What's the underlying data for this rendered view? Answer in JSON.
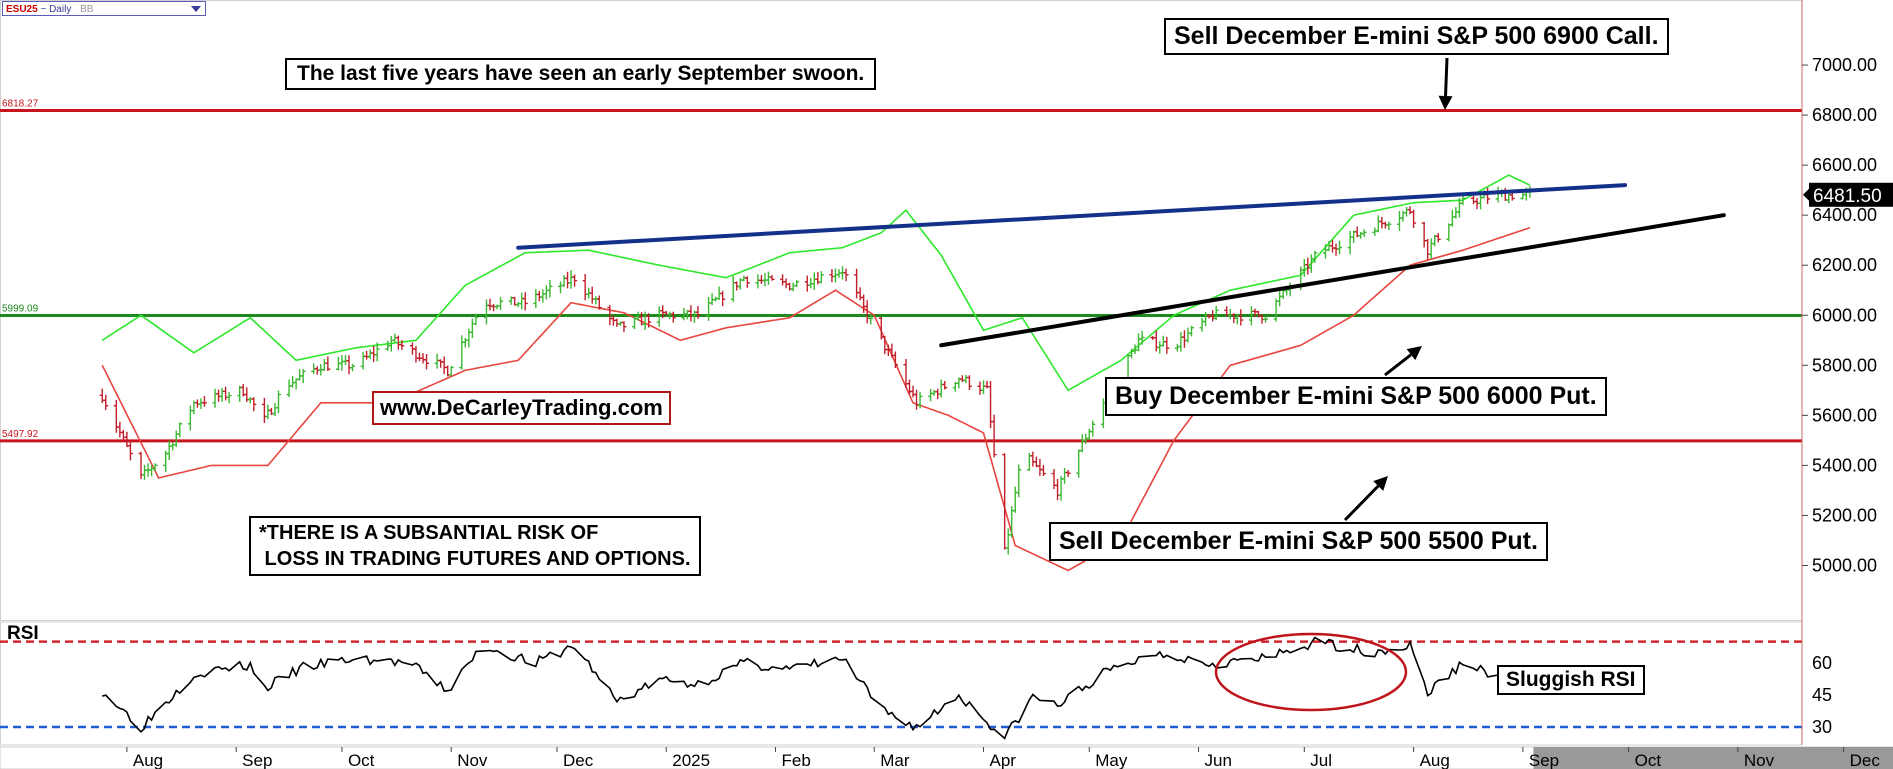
{
  "header": {
    "symbol": "ESU25",
    "interval": "~ Daily",
    "source": "BB"
  },
  "colors": {
    "price_up": "#3cb731",
    "price_down": "#c21e2a",
    "band_upper": "#2ee82a",
    "band_lower": "#e8463f",
    "resistance_trend": "#13308a",
    "support_trend": "#000000",
    "level_red": "#c8141c",
    "level_green": "#1e8a1e",
    "rsi_line": "#000000",
    "rsi_over": "#d2262e",
    "rsi_under": "#1f5ed2"
  },
  "annotations": {
    "swoon": "The last five years have seen an early September swoon.",
    "sell_call": "Sell December E-mini S&P 500 6900 Call.",
    "buy_put": "Buy December E-mini S&P 500 6000 Put.",
    "sell_put": "Sell December E-mini S&P 500 5500 Put.",
    "website": "www.DeCarleyTrading.com",
    "risk_line1": "*THERE IS A SUBSANTIAL RISK OF",
    "risk_line2": " LOSS IN TRADING FUTURES AND OPTIONS.",
    "rsi_title": "RSI",
    "sluggish": "Sluggish RSI"
  },
  "chart_data": [
    {
      "type": "ohlc",
      "x_ticks": [
        "Aug",
        "Sep",
        "Oct",
        "Nov",
        "Dec",
        "2025",
        "Feb",
        "Mar",
        "Apr",
        "May",
        "Jun",
        "Jul",
        "Aug",
        "Sep",
        "Oct",
        "Nov",
        "Dec"
      ],
      "y_ticks": [
        "5000.00",
        "5200.00",
        "5400.00",
        "5600.00",
        "5800.00",
        "6000.00",
        "6200.00",
        "6400.00",
        "6600.00",
        "6800.00",
        "7000.00"
      ],
      "ylim": [
        4870,
        7200
      ],
      "last_price": "6481.50",
      "levels": [
        {
          "label": "6818.27",
          "value": 6818.27,
          "color": "#c8141c"
        },
        {
          "label": "5999.09",
          "value": 5999.09,
          "color": "#1e8a1e"
        },
        {
          "label": "5497.92",
          "value": 5497.92,
          "color": "#c8141c"
        }
      ],
      "trendlines": [
        {
          "name": "resistance",
          "from": [
            "2024-11-20",
            6270
          ],
          "to": [
            "2025-09-30",
            6520
          ]
        },
        {
          "name": "support",
          "from": [
            "2025-03-20",
            5880
          ],
          "to": [
            "2025-10-28",
            6400
          ]
        }
      ],
      "price_anchors": [
        [
          "2024-07-25",
          5680
        ],
        [
          "2024-08-05",
          5350
        ],
        [
          "2024-08-12",
          5450
        ],
        [
          "2024-08-20",
          5650
        ],
        [
          "2024-09-03",
          5700
        ],
        [
          "2024-09-09",
          5580
        ],
        [
          "2024-09-15",
          5720
        ],
        [
          "2024-09-25",
          5800
        ],
        [
          "2024-10-05",
          5800
        ],
        [
          "2024-10-15",
          5900
        ],
        [
          "2024-10-31",
          5780
        ],
        [
          "2024-11-10",
          6050
        ],
        [
          "2024-11-22",
          6050
        ],
        [
          "2024-12-06",
          6150
        ],
        [
          "2024-12-18",
          5950
        ],
        [
          "2024-12-30",
          6000
        ],
        [
          "2025-01-10",
          6000
        ],
        [
          "2025-01-23",
          6150
        ],
        [
          "2025-02-05",
          6120
        ],
        [
          "2025-02-20",
          6180
        ],
        [
          "2025-03-01",
          5950
        ],
        [
          "2025-03-13",
          5650
        ],
        [
          "2025-03-25",
          5750
        ],
        [
          "2025-04-02",
          5700
        ],
        [
          "2025-04-07",
          5050
        ],
        [
          "2025-04-12",
          5450
        ],
        [
          "2025-04-22",
          5300
        ],
        [
          "2025-05-05",
          5650
        ],
        [
          "2025-05-15",
          5900
        ],
        [
          "2025-05-25",
          5880
        ],
        [
          "2025-06-05",
          6000
        ],
        [
          "2025-06-20",
          6000
        ],
        [
          "2025-07-05",
          6250
        ],
        [
          "2025-07-20",
          6350
        ],
        [
          "2025-07-31",
          6420
        ],
        [
          "2025-08-05",
          6260
        ],
        [
          "2025-08-15",
          6450
        ],
        [
          "2025-08-25",
          6480
        ],
        [
          "2025-09-03",
          6481.5
        ]
      ],
      "bollinger_upper": [
        [
          "2024-07-25",
          5900
        ],
        [
          "2024-08-05",
          6000
        ],
        [
          "2024-08-20",
          5850
        ],
        [
          "2024-09-05",
          5990
        ],
        [
          "2024-09-18",
          5820
        ],
        [
          "2024-10-05",
          5870
        ],
        [
          "2024-10-22",
          5900
        ],
        [
          "2024-11-05",
          6120
        ],
        [
          "2024-11-22",
          6250
        ],
        [
          "2024-12-10",
          6260
        ],
        [
          "2024-12-30",
          6200
        ],
        [
          "2025-01-18",
          6150
        ],
        [
          "2025-02-05",
          6250
        ],
        [
          "2025-02-20",
          6270
        ],
        [
          "2025-03-03",
          6330
        ],
        [
          "2025-03-10",
          6420
        ],
        [
          "2025-03-20",
          6240
        ],
        [
          "2025-04-01",
          5940
        ],
        [
          "2025-04-12",
          5990
        ],
        [
          "2025-04-25",
          5700
        ],
        [
          "2025-05-10",
          5820
        ],
        [
          "2025-05-25",
          6000
        ],
        [
          "2025-06-10",
          6100
        ],
        [
          "2025-06-30",
          6160
        ],
        [
          "2025-07-15",
          6400
        ],
        [
          "2025-08-01",
          6450
        ],
        [
          "2025-08-15",
          6460
        ],
        [
          "2025-08-28",
          6560
        ],
        [
          "2025-09-03",
          6520
        ]
      ],
      "bollinger_lower": [
        [
          "2024-07-25",
          5800
        ],
        [
          "2024-08-10",
          5350
        ],
        [
          "2024-08-25",
          5400
        ],
        [
          "2024-09-10",
          5400
        ],
        [
          "2024-09-25",
          5650
        ],
        [
          "2024-10-15",
          5650
        ],
        [
          "2024-11-05",
          5780
        ],
        [
          "2024-11-20",
          5820
        ],
        [
          "2024-12-05",
          6050
        ],
        [
          "2024-12-20",
          6010
        ],
        [
          "2025-01-05",
          5900
        ],
        [
          "2025-01-18",
          5950
        ],
        [
          "2025-02-05",
          5990
        ],
        [
          "2025-02-18",
          6100
        ],
        [
          "2025-03-01",
          6000
        ],
        [
          "2025-03-12",
          5650
        ],
        [
          "2025-03-22",
          5600
        ],
        [
          "2025-04-01",
          5530
        ],
        [
          "2025-04-10",
          5080
        ],
        [
          "2025-04-25",
          4980
        ],
        [
          "2025-05-10",
          5100
        ],
        [
          "2025-05-25",
          5500
        ],
        [
          "2025-06-10",
          5800
        ],
        [
          "2025-06-30",
          5880
        ],
        [
          "2025-07-15",
          6000
        ],
        [
          "2025-07-31",
          6200
        ],
        [
          "2025-08-15",
          6260
        ],
        [
          "2025-09-03",
          6350
        ]
      ]
    },
    {
      "type": "line",
      "title": "RSI",
      "y_ticks": [
        "30",
        "45",
        "60"
      ],
      "ylim": [
        20,
        80
      ],
      "overbought": 70,
      "oversold": 30,
      "series": [
        [
          "2024-07-25",
          47
        ],
        [
          "2024-08-05",
          30
        ],
        [
          "2024-08-20",
          55
        ],
        [
          "2024-09-05",
          59
        ],
        [
          "2024-09-09",
          48
        ],
        [
          "2024-09-20",
          58
        ],
        [
          "2024-10-05",
          62
        ],
        [
          "2024-10-20",
          60
        ],
        [
          "2024-10-31",
          47
        ],
        [
          "2024-11-10",
          68
        ],
        [
          "2024-11-25",
          60
        ],
        [
          "2024-12-06",
          68
        ],
        [
          "2024-12-18",
          42
        ],
        [
          "2024-12-30",
          52
        ],
        [
          "2025-01-10",
          50
        ],
        [
          "2025-01-23",
          60
        ],
        [
          "2025-02-05",
          57
        ],
        [
          "2025-02-20",
          62
        ],
        [
          "2025-03-03",
          38
        ],
        [
          "2025-03-13",
          30
        ],
        [
          "2025-03-25",
          45
        ],
        [
          "2025-04-07",
          25
        ],
        [
          "2025-04-15",
          44
        ],
        [
          "2025-04-22",
          40
        ],
        [
          "2025-05-05",
          55
        ],
        [
          "2025-05-20",
          65
        ],
        [
          "2025-06-05",
          60
        ],
        [
          "2025-06-20",
          62
        ],
        [
          "2025-07-05",
          70
        ],
        [
          "2025-07-20",
          65
        ],
        [
          "2025-07-31",
          68
        ],
        [
          "2025-08-05",
          46
        ],
        [
          "2025-08-15",
          60
        ],
        [
          "2025-08-25",
          54
        ],
        [
          "2025-09-03",
          52
        ]
      ]
    }
  ]
}
